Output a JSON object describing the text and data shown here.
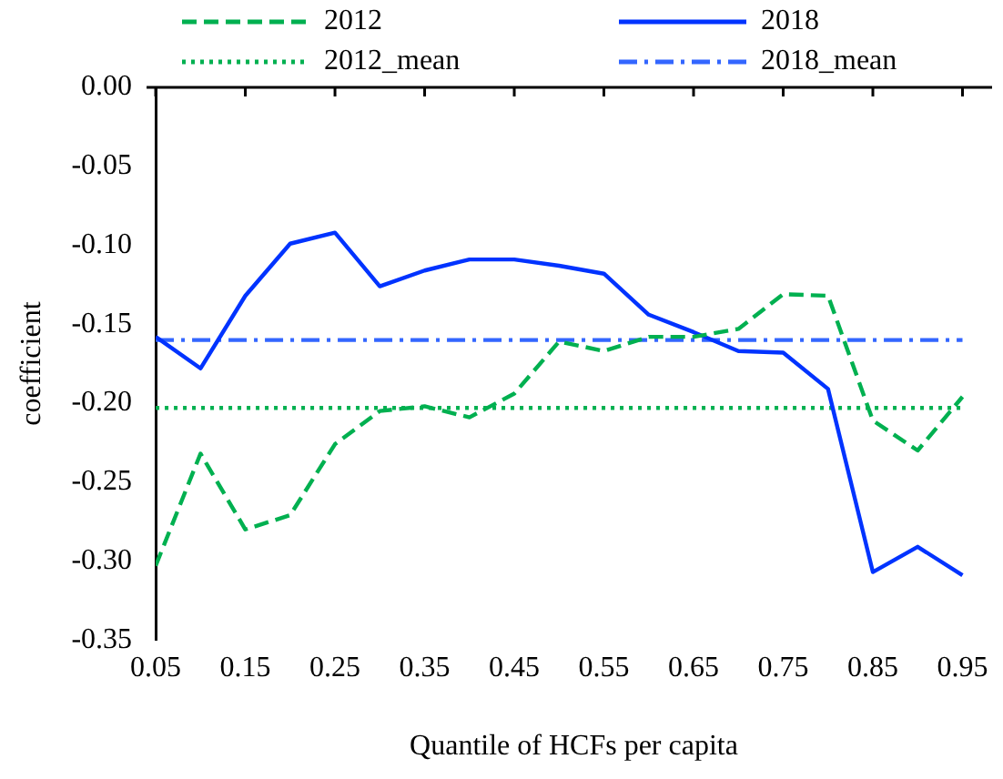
{
  "chart_data": {
    "type": "line",
    "xlabel": "Quantile of HCFs per capita",
    "ylabel": "coefficient",
    "x": [
      0.05,
      0.1,
      0.15,
      0.2,
      0.25,
      0.3,
      0.35,
      0.4,
      0.45,
      0.5,
      0.55,
      0.6,
      0.65,
      0.7,
      0.75,
      0.8,
      0.85,
      0.9,
      0.95
    ],
    "series": [
      {
        "name": "2012",
        "color": "#00b050",
        "line_style": "dashed",
        "values": [
          -0.303,
          -0.232,
          -0.28,
          -0.271,
          -0.226,
          -0.205,
          -0.202,
          -0.209,
          -0.194,
          -0.161,
          -0.167,
          -0.158,
          -0.158,
          -0.153,
          -0.131,
          -0.132,
          -0.211,
          -0.23,
          -0.196
        ]
      },
      {
        "name": "2018",
        "color": "#0033ff",
        "line_style": "solid",
        "values": [
          -0.158,
          -0.178,
          -0.132,
          -0.099,
          -0.092,
          -0.126,
          -0.116,
          -0.109,
          -0.109,
          -0.113,
          -0.118,
          -0.144,
          -0.155,
          -0.167,
          -0.168,
          -0.191,
          -0.307,
          -0.291,
          -0.309
        ]
      },
      {
        "name": "2012_mean",
        "color": "#00b050",
        "line_style": "dotted",
        "values": [
          -0.203,
          -0.203,
          -0.203,
          -0.203,
          -0.203,
          -0.203,
          -0.203,
          -0.203,
          -0.203,
          -0.203,
          -0.203,
          -0.203,
          -0.203,
          -0.203,
          -0.203,
          -0.203,
          -0.203,
          -0.203,
          -0.203
        ]
      },
      {
        "name": "2018_mean",
        "color": "#3366ff",
        "line_style": "dashdot",
        "values": [
          -0.16,
          -0.16,
          -0.16,
          -0.16,
          -0.16,
          -0.16,
          -0.16,
          -0.16,
          -0.16,
          -0.16,
          -0.16,
          -0.16,
          -0.16,
          -0.16,
          -0.16,
          -0.16,
          -0.16,
          -0.16,
          -0.16
        ]
      }
    ],
    "xlim": [
      0.05,
      0.983
    ],
    "xticks": [
      0.05,
      0.15,
      0.25,
      0.35,
      0.45,
      0.55,
      0.65,
      0.75,
      0.85,
      0.95
    ],
    "ylim": [
      -0.35,
      0
    ],
    "yticks": [
      {
        "value": -0.35,
        "label": "-0.35"
      },
      {
        "value": -0.3,
        "label": "-0.30"
      },
      {
        "value": -0.25,
        "label": "-0.25"
      },
      {
        "value": -0.2,
        "label": "-0.20"
      },
      {
        "value": -0.15,
        "label": "-0.15"
      },
      {
        "value": -0.1,
        "label": "-0.10"
      },
      {
        "value": -0.05,
        "label": "-0.05"
      },
      {
        "value": 0,
        "label": "0.00"
      }
    ],
    "grid": false,
    "legend": "top",
    "marker": "none"
  }
}
